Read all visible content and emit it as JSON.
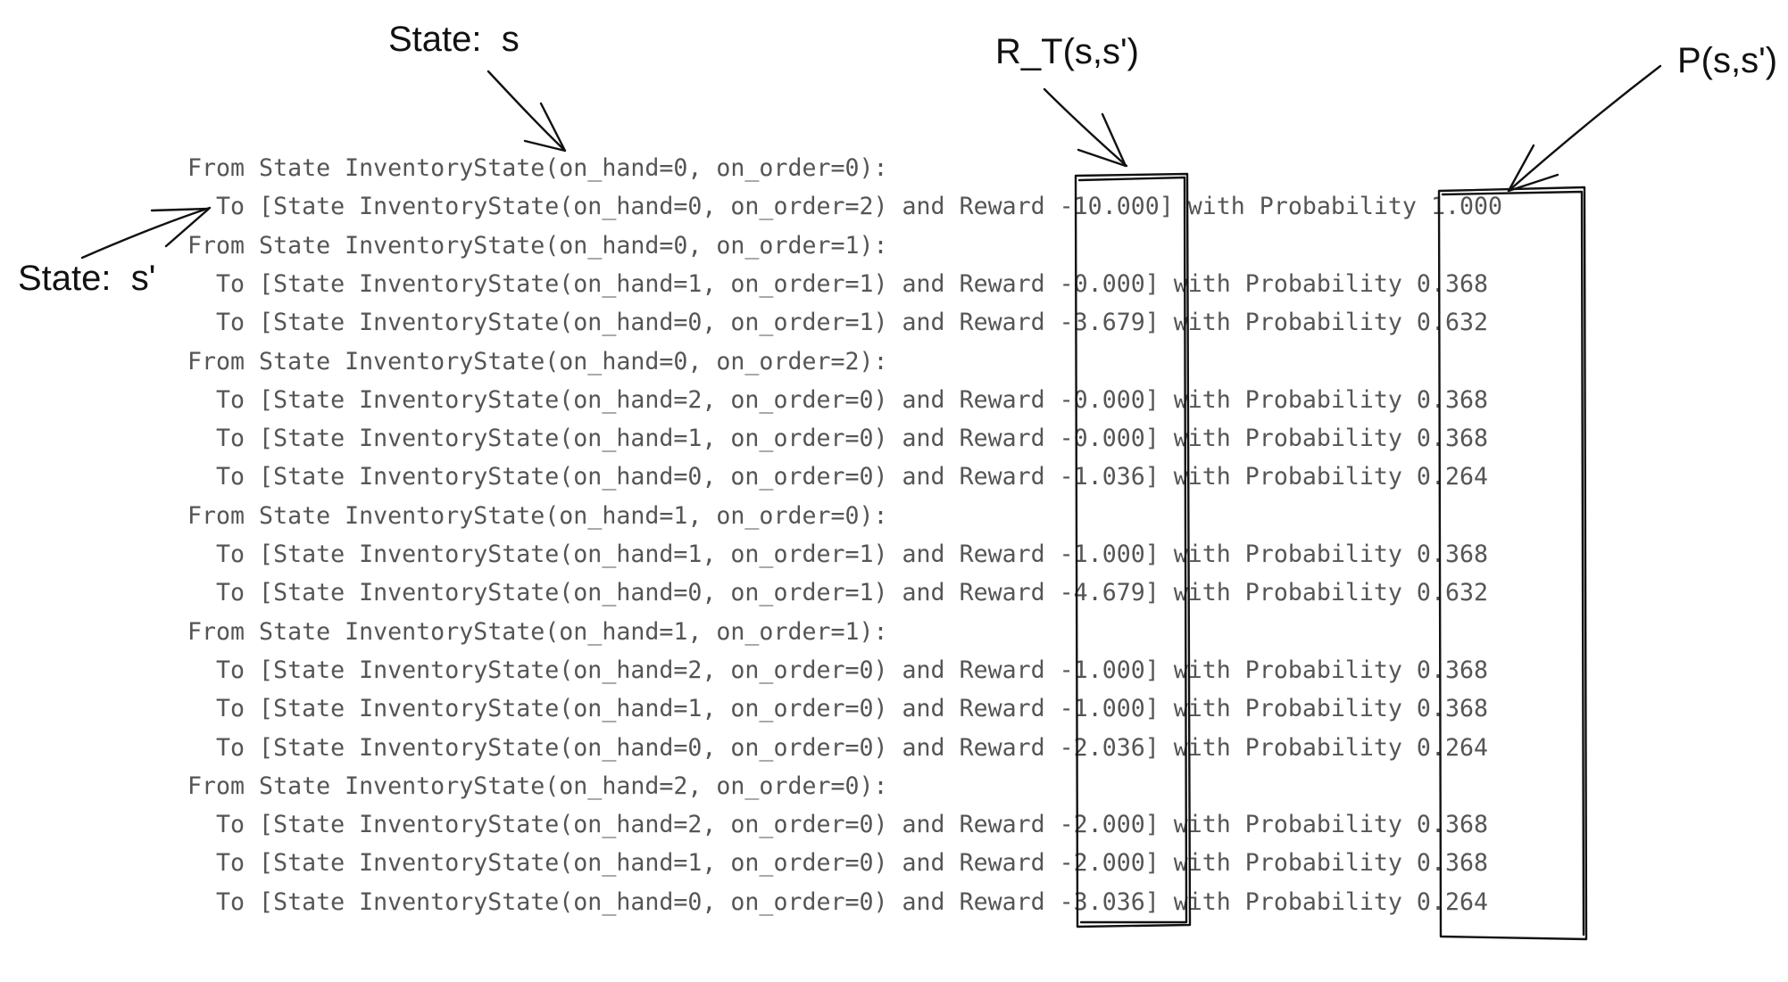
{
  "annotations": {
    "state_s": "State:  s",
    "state_s_prime": "State:  s'",
    "reward_label": "R_T(s,s')",
    "prob_label": "P(s,s')"
  },
  "code_lines": [
    "From State InventoryState(on_hand=0, on_order=0):",
    "  To [State InventoryState(on_hand=0, on_order=2) and Reward -10.000] with Probability 1.000",
    "From State InventoryState(on_hand=0, on_order=1):",
    "  To [State InventoryState(on_hand=1, on_order=1) and Reward -0.000] with Probability 0.368",
    "  To [State InventoryState(on_hand=0, on_order=1) and Reward -3.679] with Probability 0.632",
    "From State InventoryState(on_hand=0, on_order=2):",
    "  To [State InventoryState(on_hand=2, on_order=0) and Reward -0.000] with Probability 0.368",
    "  To [State InventoryState(on_hand=1, on_order=0) and Reward -0.000] with Probability 0.368",
    "  To [State InventoryState(on_hand=0, on_order=0) and Reward -1.036] with Probability 0.264",
    "From State InventoryState(on_hand=1, on_order=0):",
    "  To [State InventoryState(on_hand=1, on_order=1) and Reward -1.000] with Probability 0.368",
    "  To [State InventoryState(on_hand=0, on_order=1) and Reward -4.679] with Probability 0.632",
    "From State InventoryState(on_hand=1, on_order=1):",
    "  To [State InventoryState(on_hand=2, on_order=0) and Reward -1.000] with Probability 0.368",
    "  To [State InventoryState(on_hand=1, on_order=0) and Reward -1.000] with Probability 0.368",
    "  To [State InventoryState(on_hand=0, on_order=0) and Reward -2.036] with Probability 0.264",
    "From State InventoryState(on_hand=2, on_order=0):",
    "  To [State InventoryState(on_hand=2, on_order=0) and Reward -2.000] with Probability 0.368",
    "  To [State InventoryState(on_hand=1, on_order=0) and Reward -2.000] with Probability 0.368",
    "  To [State InventoryState(on_hand=0, on_order=0) and Reward -3.036] with Probability 0.264"
  ]
}
